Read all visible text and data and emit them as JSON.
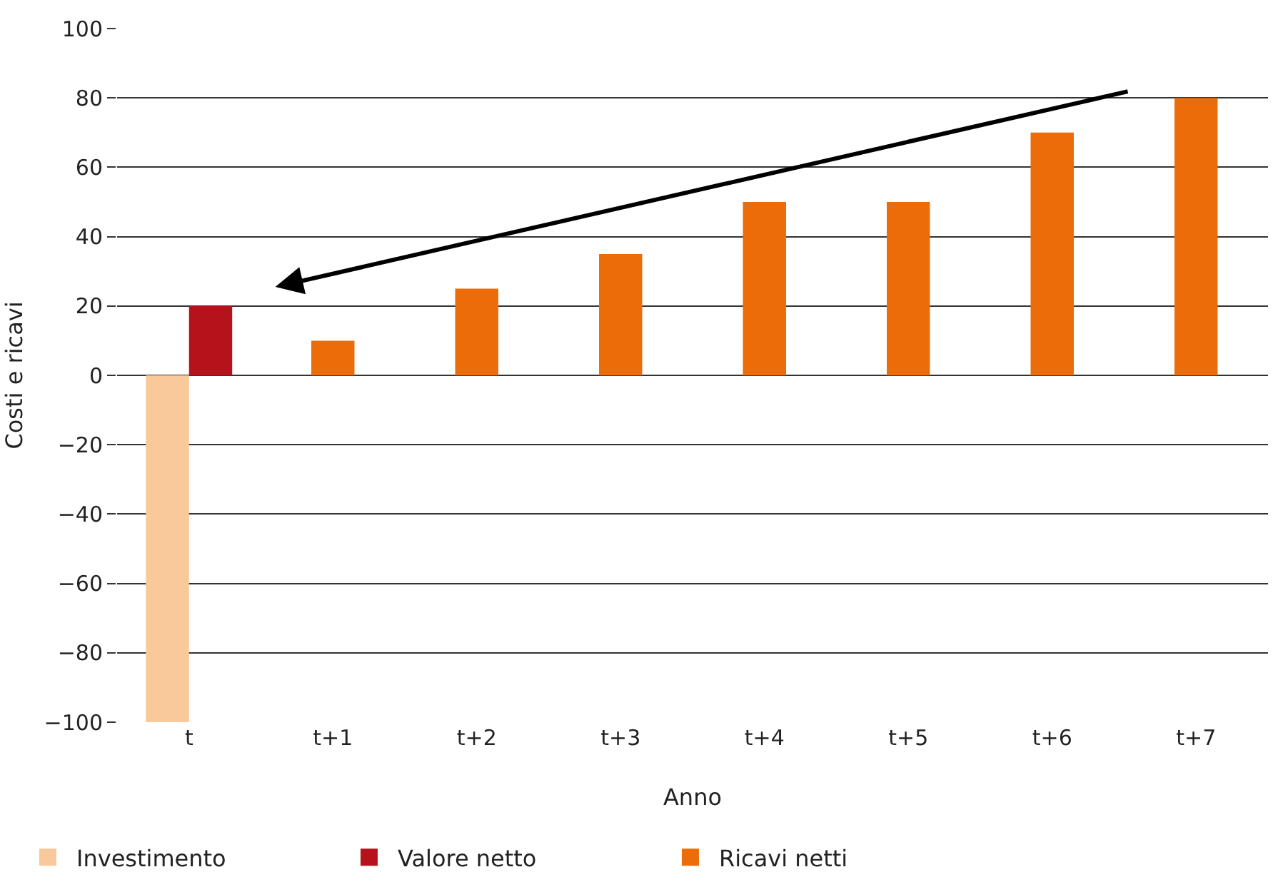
{
  "chart_data": {
    "type": "bar",
    "xlabel": "Anno",
    "ylabel": "Costi e ricavi",
    "categories": [
      "t",
      "t+1",
      "t+2",
      "t+3",
      "t+4",
      "t+5",
      "t+6",
      "t+7"
    ],
    "series": [
      {
        "name": "Investimento",
        "color": "#f9c89b",
        "values": [
          -100,
          null,
          null,
          null,
          null,
          null,
          null,
          null
        ]
      },
      {
        "name": "Valore netto",
        "color": "#b5121b",
        "values": [
          20,
          null,
          null,
          null,
          null,
          null,
          null,
          null
        ]
      },
      {
        "name": "Ricavi netti",
        "color": "#ec6c0a",
        "values": [
          null,
          10,
          25,
          35,
          50,
          50,
          70,
          80
        ]
      }
    ],
    "ylim": [
      -100,
      100
    ],
    "yticks": [
      -100,
      -80,
      -60,
      -40,
      -20,
      0,
      20,
      40,
      60,
      80,
      100
    ],
    "grid": "y",
    "legend": "bottom"
  }
}
